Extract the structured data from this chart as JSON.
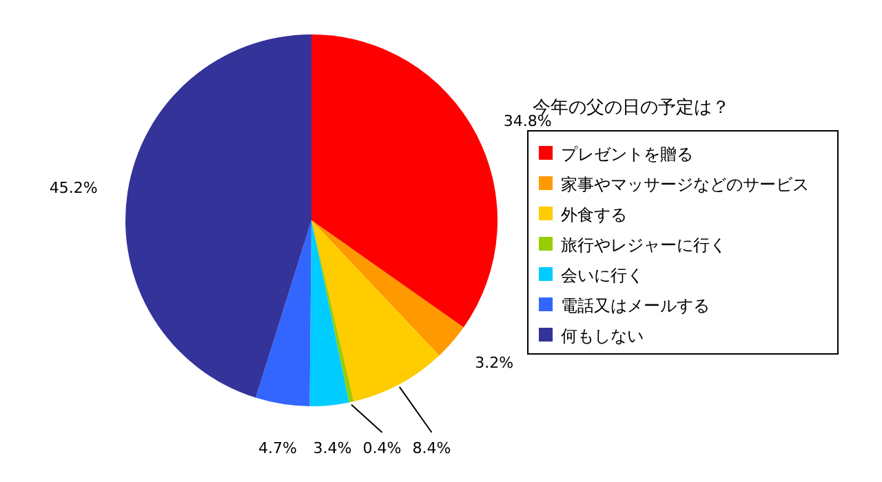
{
  "chart_data": {
    "type": "pie",
    "title": "今年の父の日の予定は？",
    "categories": [
      "プレゼントを贈る",
      "家事やマッサージなどのサービス",
      "外食する",
      "旅行やレジャーに行く",
      "会いに行く",
      "電話又はメールする",
      "何もしない"
    ],
    "values": [
      34.8,
      3.2,
      8.4,
      0.4,
      3.4,
      4.7,
      45.2
    ],
    "colors": [
      "#ff0000",
      "#ff9900",
      "#ffcc00",
      "#99cc00",
      "#00ccff",
      "#3366ff",
      "#333399"
    ],
    "value_labels": [
      "34.8%",
      "3.2%",
      "8.4%",
      "0.4%",
      "3.4%",
      "4.7%",
      "45.2%"
    ],
    "legend": "right"
  }
}
